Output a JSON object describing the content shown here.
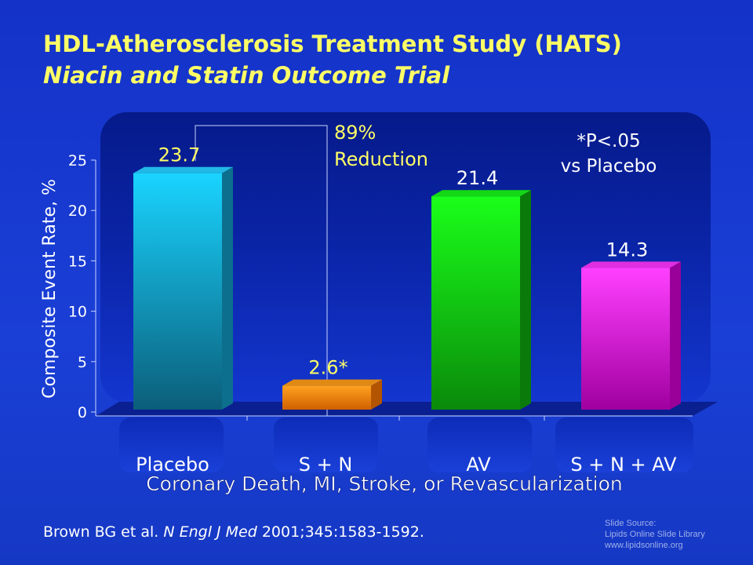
{
  "title": "HDL-Atherosclerosis Treatment Study (HATS)",
  "subtitle": "Niacin and Statin Outcome Trial",
  "chart_data": {
    "type": "bar",
    "categories": [
      "Placebo",
      "S + N",
      "AV",
      "S + N + AV"
    ],
    "values": [
      23.7,
      2.6,
      21.4,
      14.3
    ],
    "data_labels": [
      "23.7",
      "2.6*",
      "21.4",
      "14.3"
    ],
    "bar_colors": [
      "#19cfff",
      "#ff9f1a",
      "#1aff1a",
      "#ff33ff"
    ],
    "ylabel": "Composite Event Rate, %",
    "xlabel": "Coronary Death, MI, Stroke, or Revascularization",
    "ylim": [
      0,
      25
    ],
    "yticks": [
      0,
      5,
      10,
      15,
      20,
      25
    ],
    "annotations": {
      "reduction_line1": "89%",
      "reduction_line2": "Reduction",
      "pvalue_line1": "*P<.05",
      "pvalue_line2": "vs Placebo"
    }
  },
  "footer": {
    "ref_authors": "Brown BG et al. ",
    "ref_journal": "N Engl J Med",
    "ref_rest": " 2001;345:1583-1592.",
    "source_line1": "Slide Source:",
    "source_line2": "Lipids Online Slide Library",
    "source_line3": "www.lipidsonline.org"
  },
  "colors": {
    "title": "#ffff66",
    "label_yellow": "#ffff66",
    "text_white": "#ffffff",
    "background": "#1a3fd6"
  }
}
